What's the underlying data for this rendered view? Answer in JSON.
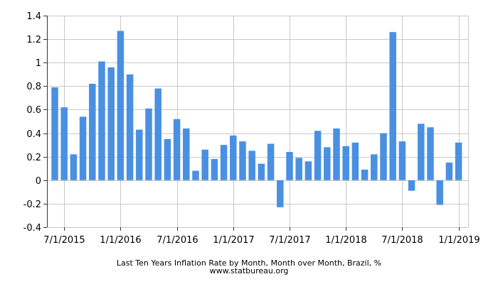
{
  "chart_data": {
    "type": "bar",
    "title": "Last Ten Years Inflation Rate by Month, Month over Month, Brazil, %",
    "source": "www.statbureau.org",
    "ylim": [
      -0.4,
      1.4
    ],
    "y_ticks": [
      1.4,
      1.2,
      1,
      0.8,
      0.6,
      0.4,
      0.2,
      0,
      -0.2,
      -0.4
    ],
    "x_tick_labels": [
      {
        "label": "7/1/2015",
        "index": 1
      },
      {
        "label": "1/1/2016",
        "index": 7
      },
      {
        "label": "7/1/2016",
        "index": 13
      },
      {
        "label": "1/1/2017",
        "index": 19
      },
      {
        "label": "7/1/2017",
        "index": 25
      },
      {
        "label": "1/1/2018",
        "index": 31
      },
      {
        "label": "7/1/2018",
        "index": 37
      },
      {
        "label": "1/1/2019",
        "index": 43
      }
    ],
    "grid": true,
    "bar_color": "#4a90e2",
    "categories": [
      "6/1/2015",
      "7/1/2015",
      "8/1/2015",
      "9/1/2015",
      "10/1/2015",
      "11/1/2015",
      "12/1/2015",
      "1/1/2016",
      "2/1/2016",
      "3/1/2016",
      "4/1/2016",
      "5/1/2016",
      "6/1/2016",
      "7/1/2016",
      "8/1/2016",
      "9/1/2016",
      "10/1/2016",
      "11/1/2016",
      "12/1/2016",
      "1/1/2017",
      "2/1/2017",
      "3/1/2017",
      "4/1/2017",
      "5/1/2017",
      "6/1/2017",
      "7/1/2017",
      "8/1/2017",
      "9/1/2017",
      "10/1/2017",
      "11/1/2017",
      "12/1/2017",
      "1/1/2018",
      "2/1/2018",
      "3/1/2018",
      "4/1/2018",
      "5/1/2018",
      "6/1/2018",
      "7/1/2018",
      "8/1/2018",
      "9/1/2018",
      "10/1/2018",
      "11/1/2018",
      "12/1/2018",
      "1/1/2019"
    ],
    "values": [
      0.79,
      0.62,
      0.22,
      0.54,
      0.82,
      1.01,
      0.96,
      1.27,
      0.9,
      0.43,
      0.61,
      0.78,
      0.35,
      0.52,
      0.44,
      0.08,
      0.26,
      0.18,
      0.3,
      0.38,
      0.33,
      0.25,
      0.14,
      0.31,
      -0.23,
      0.24,
      0.19,
      0.16,
      0.42,
      0.28,
      0.44,
      0.29,
      0.32,
      0.09,
      0.22,
      0.4,
      1.26,
      0.33,
      -0.09,
      0.48,
      0.45,
      -0.21,
      0.15,
      0.32
    ]
  }
}
